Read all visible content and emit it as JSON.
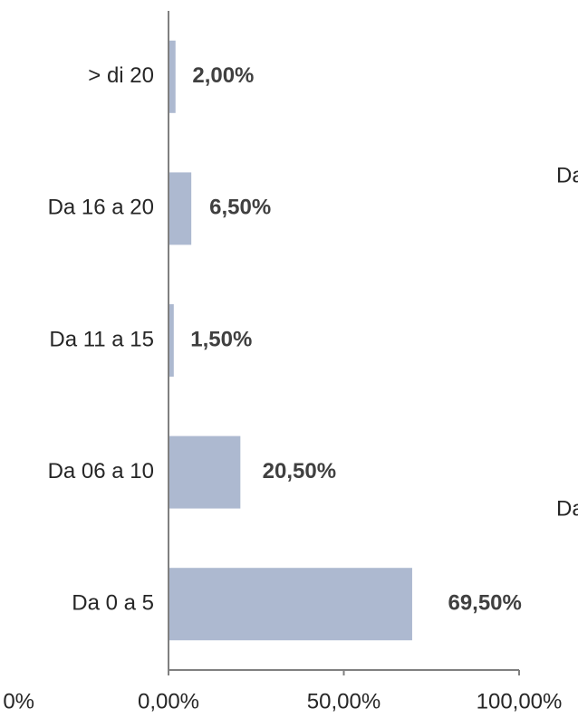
{
  "chart_data": {
    "type": "hbar",
    "categories": [
      "Da 0 a 5",
      "Da 06 a 10",
      "Da 11 a 15",
      "Da 16 a 20",
      "> di 20"
    ],
    "values": [
      69.5,
      20.5,
      1.5,
      6.5,
      2
    ],
    "value_labels": [
      "69,50%",
      "20,50%",
      "1,50%",
      "6,50%",
      "2,00%"
    ],
    "color": "#adb9d0",
    "xlim": [
      0,
      100
    ],
    "xticks": [
      {
        "value": 0,
        "label": "0,00%"
      },
      {
        "value": 50,
        "label": "50,00%"
      },
      {
        "value": 100,
        "label": "100,00%"
      }
    ]
  },
  "clipped_texts": [
    "Da",
    "Da",
    "0%"
  ]
}
